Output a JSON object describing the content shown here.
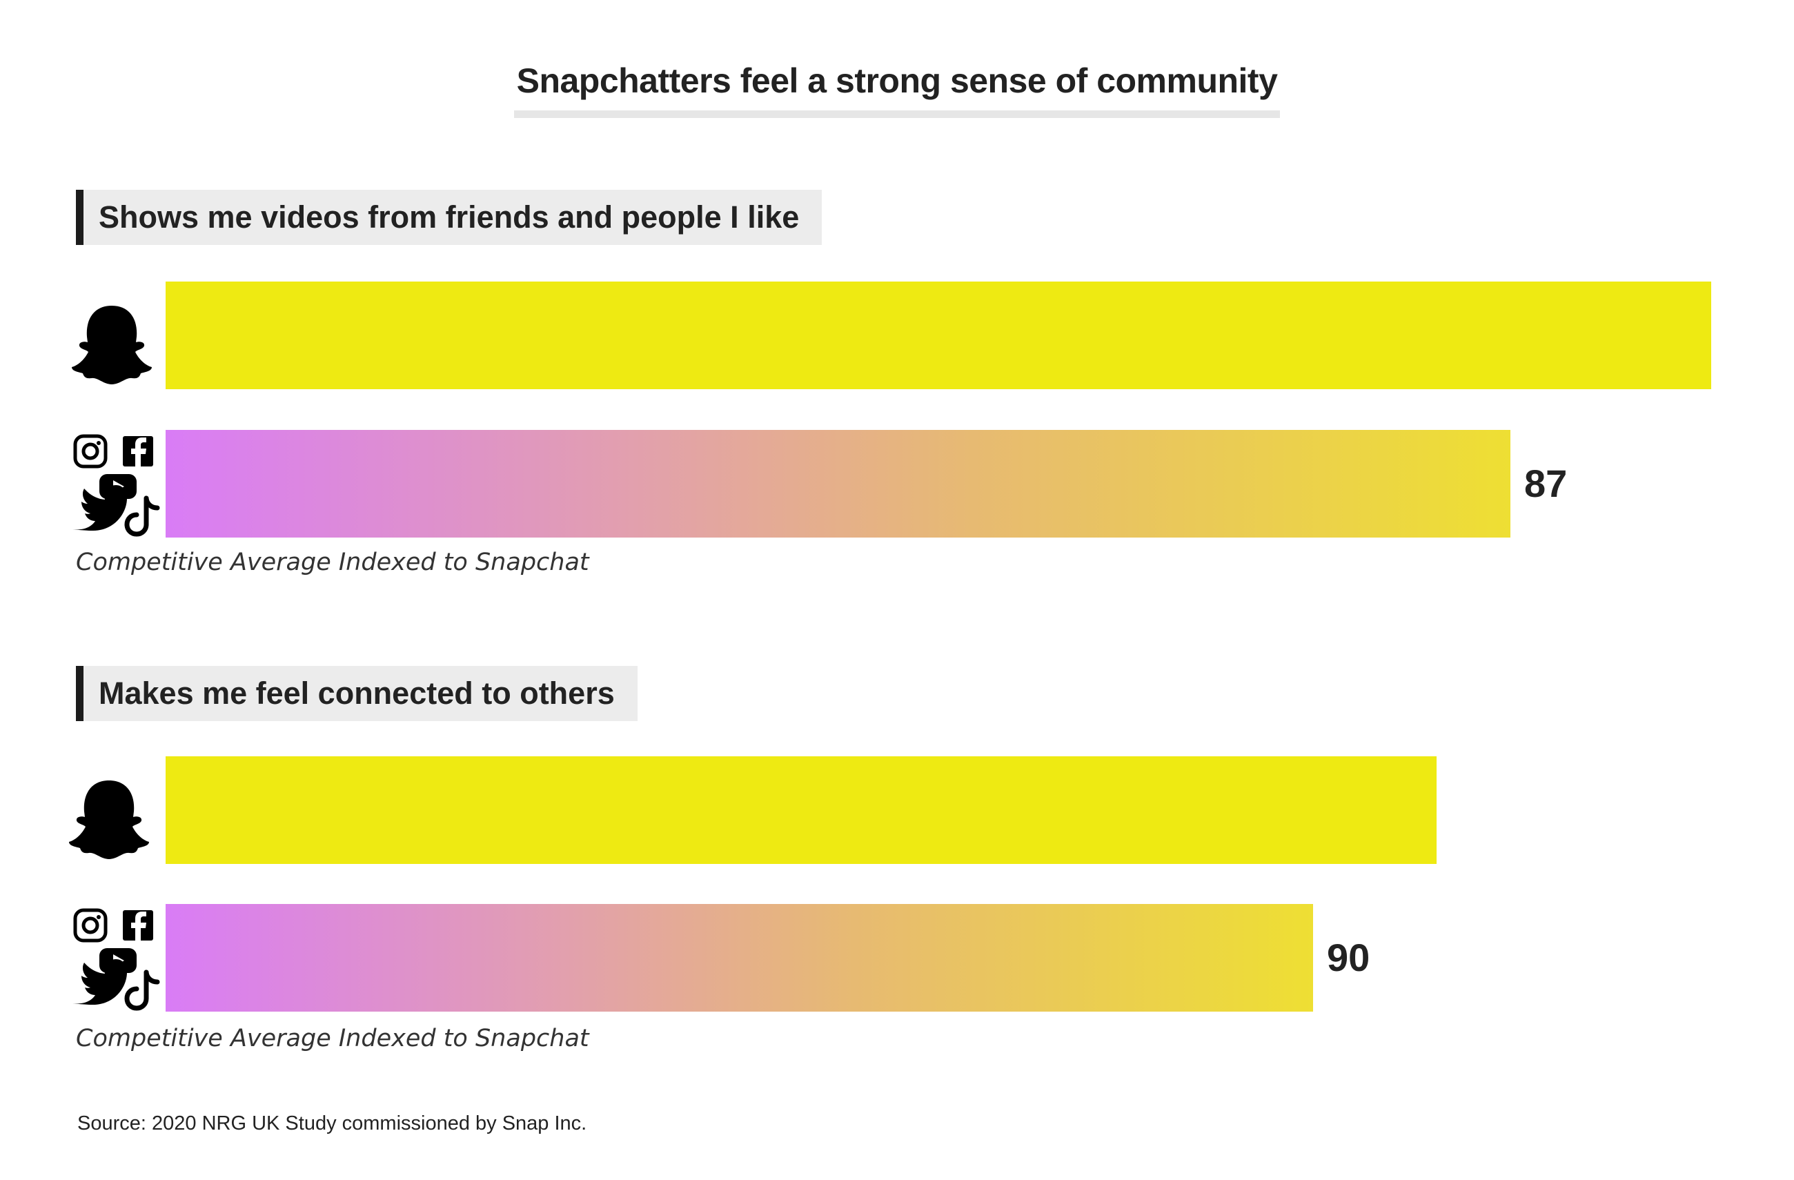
{
  "title": "Snapchatters feel a strong sense of community",
  "colors": {
    "snapchat_bar": "#eeea12",
    "gradient_start": "#d97cf6",
    "gradient_end": "#eedf33",
    "heading_bg": "#ececec"
  },
  "icons": {
    "snapchat": "snapchat-ghost-icon",
    "competitors": [
      "instagram-icon",
      "facebook-icon",
      "youtube-icon",
      "twitter-icon",
      "tiktok-icon"
    ]
  },
  "chart_data": [
    {
      "type": "bar",
      "orientation": "horizontal",
      "title": "Shows me videos from friends and people I like",
      "categories": [
        "Snapchat",
        "Competitive Average"
      ],
      "values": [
        100,
        87
      ],
      "value_labels": [
        "",
        "87"
      ],
      "caption": "Competitive Average Indexed to Snapchat",
      "xlim": [
        0,
        100
      ]
    },
    {
      "type": "bar",
      "orientation": "horizontal",
      "title": "Makes me feel connected to others",
      "categories": [
        "Snapchat",
        "Competitive Average"
      ],
      "values": [
        100,
        90
      ],
      "value_labels": [
        "",
        "90"
      ],
      "caption": "Competitive Average Indexed to Snapchat",
      "xlim": [
        0,
        100
      ]
    }
  ],
  "source": "Source: 2020 NRG UK Study commissioned by Snap Inc."
}
